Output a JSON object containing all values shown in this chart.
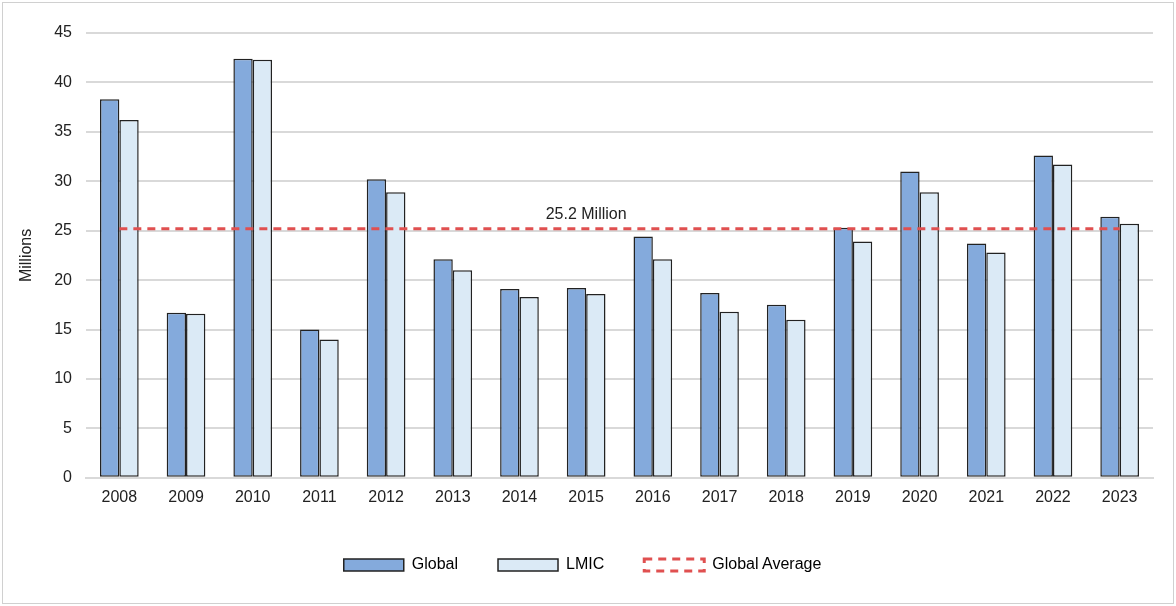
{
  "chart_data": {
    "type": "bar",
    "ylabel": "Millions",
    "categories": [
      "2008",
      "2009",
      "2010",
      "2011",
      "2012",
      "2013",
      "2014",
      "2015",
      "2016",
      "2017",
      "2018",
      "2019",
      "2020",
      "2021",
      "2022",
      "2023"
    ],
    "series": [
      {
        "name": "Global",
        "color": "#84aadc",
        "values": [
          38.3,
          16.7,
          42.4,
          15.0,
          30.2,
          22.1,
          19.1,
          19.2,
          24.4,
          18.7,
          17.5,
          25.3,
          31.0,
          23.7,
          32.6,
          26.4
        ]
      },
      {
        "name": "LMIC",
        "color": "#dbeaf6",
        "values": [
          36.2,
          16.6,
          42.3,
          14.0,
          28.9,
          21.0,
          18.3,
          18.6,
          22.1,
          16.8,
          16.0,
          23.9,
          28.9,
          22.8,
          31.7,
          25.7
        ]
      },
      {
        "name": "Global Average",
        "type": "line",
        "color": "#e05050",
        "line_style": "dashed",
        "marker": "none",
        "values": [
          25.2,
          25.2,
          25.2,
          25.2,
          25.2,
          25.2,
          25.2,
          25.2,
          25.2,
          25.2,
          25.2,
          25.2,
          25.2,
          25.2,
          25.2,
          25.2
        ]
      }
    ],
    "annotations": [
      {
        "text": "25.2 Million",
        "x": "2015",
        "y": 25.2
      }
    ],
    "ylim": [
      0,
      45
    ],
    "yticks": [
      0,
      5,
      10,
      15,
      20,
      25,
      30,
      35,
      40,
      45
    ],
    "grid": "y",
    "legend": "bottom"
  }
}
